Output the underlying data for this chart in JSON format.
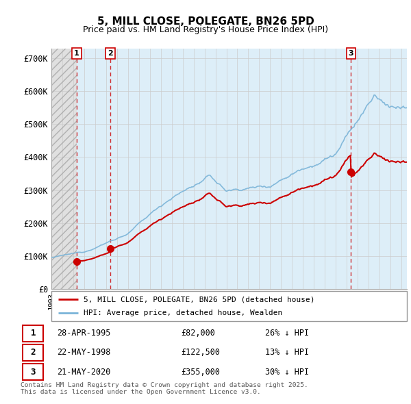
{
  "title": "5, MILL CLOSE, POLEGATE, BN26 5PD",
  "subtitle": "Price paid vs. HM Land Registry's House Price Index (HPI)",
  "ylabel_ticks": [
    "£0",
    "£100K",
    "£200K",
    "£300K",
    "£400K",
    "£500K",
    "£600K",
    "£700K"
  ],
  "ytick_values": [
    0,
    100000,
    200000,
    300000,
    400000,
    500000,
    600000,
    700000
  ],
  "ylim": [
    0,
    730000
  ],
  "xlim_start": 1993.0,
  "xlim_end": 2025.5,
  "hpi_color": "#7ab4d8",
  "price_color": "#cc0000",
  "transactions": [
    {
      "label": "1",
      "date": 1995.32,
      "price": 82000
    },
    {
      "label": "2",
      "date": 1998.38,
      "price": 122500
    },
    {
      "label": "3",
      "date": 2020.38,
      "price": 355000
    }
  ],
  "legend_property_label": "5, MILL CLOSE, POLEGATE, BN26 5PD (detached house)",
  "legend_hpi_label": "HPI: Average price, detached house, Wealden",
  "table_rows": [
    {
      "num": "1",
      "date": "28-APR-1995",
      "price": "£82,000",
      "pct": "26% ↓ HPI"
    },
    {
      "num": "2",
      "date": "22-MAY-1998",
      "price": "£122,500",
      "pct": "13% ↓ HPI"
    },
    {
      "num": "3",
      "date": "21-MAY-2020",
      "price": "£355,000",
      "pct": "30% ↓ HPI"
    }
  ],
  "footnote": "Contains HM Land Registry data © Crown copyright and database right 2025.\nThis data is licensed under the Open Government Licence v3.0.",
  "grid_color": "#cccccc",
  "bg_hatch_color": "#d8d8d8",
  "bg_between_color": "#ddeeff",
  "bg_right_color": "#ddeeff"
}
